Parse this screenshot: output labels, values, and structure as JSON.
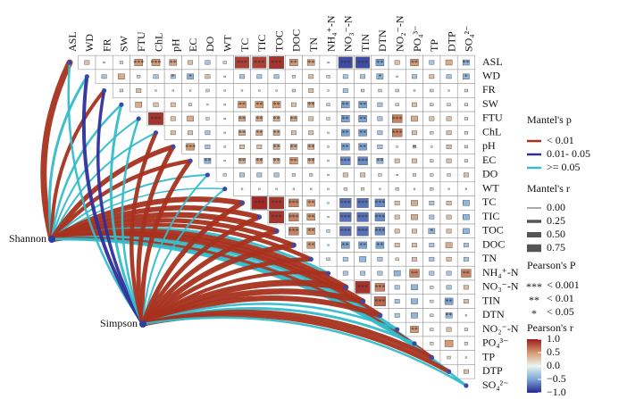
{
  "chart_data": {
    "type": "heatmap",
    "variables": [
      "ASL",
      "WD",
      "FR",
      "SW",
      "FTU",
      "ChL",
      "pH",
      "EC",
      "DO",
      "WT",
      "TC",
      "TIC",
      "TOC",
      "DOC",
      "TN",
      "NH₄⁺-N",
      "NO₃⁻-N",
      "TIN",
      "DTN",
      "NO₂⁻-N",
      "PO₄³⁻",
      "TP",
      "DTP",
      "SO₄²⁻"
    ],
    "matrix": {
      "values": [
        [
          0.3,
          0.1,
          0.2,
          0.5,
          0.5,
          0.45,
          0.3,
          -0.3,
          0.2,
          0.85,
          0.85,
          0.9,
          0.5,
          0.45,
          -0.1,
          -0.85,
          -0.85,
          -0.5,
          0.3,
          0.5,
          -0.3,
          0.4,
          -0.4
        ],
        [
          -0.3,
          0.4,
          -0.2,
          -0.3,
          -0.3,
          -0.4,
          0.3,
          0.1,
          -0.3,
          -0.3,
          -0.3,
          0.2,
          0.3,
          -0.2,
          -0.3,
          -0.3,
          -0.4,
          0.1,
          -0.3,
          0.3,
          -0.3,
          -0.4
        ],
        [
          0.2,
          0.3,
          0.1,
          0.1,
          0.1,
          0.2,
          0.1,
          0.1,
          0.1,
          0.1,
          0.2,
          0.3,
          0.1,
          -0.3,
          -0.2,
          -0.2,
          0.2,
          0.1,
          0.2,
          0.1,
          0.2
        ],
        [
          0.4,
          0.3,
          0.3,
          0.2,
          -0.1,
          0.1,
          0.5,
          0.5,
          0.5,
          0.3,
          0.4,
          -0.2,
          -0.5,
          -0.5,
          -0.3,
          0.2,
          0.3,
          -0.2,
          0.2,
          -0.2
        ],
        [
          0.9,
          0.3,
          0.4,
          -0.2,
          0.1,
          0.4,
          0.4,
          0.4,
          0.4,
          0.3,
          0.2,
          -0.5,
          -0.5,
          -0.3,
          0.6,
          0.4,
          0.3,
          0.3,
          -0.2
        ],
        [
          0.3,
          0.3,
          -0.3,
          0.1,
          0.4,
          0.4,
          0.4,
          0.3,
          0.3,
          0.1,
          -0.5,
          -0.5,
          -0.3,
          0.6,
          0.3,
          0.2,
          0.3,
          -0.2
        ],
        [
          0.5,
          -0.3,
          0.1,
          0.3,
          0.3,
          0.4,
          0.4,
          0.4,
          0.1,
          -0.5,
          -0.5,
          -0.3,
          0.1,
          0.2,
          -0.1,
          0.3,
          -0.2
        ],
        [
          -0.4,
          0.1,
          0.4,
          0.4,
          0.4,
          0.5,
          0.4,
          0.1,
          -0.6,
          -0.6,
          -0.4,
          0.3,
          0.3,
          -0.2,
          0.3,
          -0.2
        ],
        [
          0.2,
          -0.3,
          -0.3,
          -0.3,
          -0.2,
          -0.2,
          0.1,
          0.3,
          0.3,
          0.2,
          -0.1,
          0.2,
          0.2,
          0.2,
          0.3
        ],
        [
          0.1,
          0.1,
          0.1,
          -0.1,
          0.1,
          -0.1,
          0.2,
          0.2,
          0.1,
          0.2,
          0.1,
          0.2,
          0.1,
          0.1
        ],
        [
          0.95,
          0.9,
          0.6,
          0.5,
          -0.1,
          -0.7,
          -0.7,
          -0.6,
          0.3,
          0.4,
          -0.3,
          0.3,
          -0.4
        ],
        [
          0.9,
          0.6,
          0.5,
          -0.1,
          -0.7,
          -0.7,
          -0.6,
          0.3,
          0.4,
          -0.3,
          0.3,
          -0.4
        ],
        [
          0.6,
          0.5,
          -0.2,
          -0.7,
          -0.7,
          -0.6,
          0.3,
          0.3,
          -0.4,
          0.3,
          -0.4
        ],
        [
          0.5,
          -0.1,
          -0.5,
          -0.5,
          -0.5,
          0.3,
          0.3,
          -0.3,
          0.4,
          -0.3
        ],
        [
          -0.2,
          -0.3,
          -0.4,
          -0.3,
          0.2,
          0.3,
          -0.3,
          0.3,
          -0.3
        ],
        [
          -0.3,
          -0.3,
          -0.3,
          -0.4,
          0.6,
          -0.3,
          -0.3,
          0.6
        ],
        [
          0.9,
          0.6,
          -0.3,
          -0.4,
          0.2,
          -0.3,
          0.3
        ],
        [
          0.7,
          -0.3,
          -0.4,
          0.2,
          -0.5,
          0.3
        ],
        [
          -0.3,
          -0.4,
          0.2,
          -0.4,
          0.1
        ],
        [
          0.5,
          0.2,
          0.3,
          0.2
        ],
        [
          0.2,
          0.5,
          0.2
        ],
        [
          0.2,
          0.1
        ],
        [
          0.3
        ]
      ],
      "stars": [
        [
          null,
          null,
          null,
          0,
          0,
          1,
          null,
          null,
          null,
          0,
          0,
          0,
          1,
          1,
          null,
          0,
          0,
          1,
          null,
          1,
          null,
          null,
          1
        ],
        [
          null,
          null,
          null,
          null,
          2,
          2,
          null,
          null,
          null,
          null,
          null,
          null,
          null,
          null,
          null,
          null,
          2,
          null,
          null,
          null,
          null,
          2
        ],
        [
          null,
          null,
          null,
          null,
          null,
          null,
          null,
          null,
          null,
          null,
          null,
          null,
          null,
          null,
          null,
          null,
          null,
          null,
          null,
          null,
          null
        ],
        [
          null,
          null,
          null,
          null,
          null,
          null,
          1,
          1,
          1,
          null,
          1,
          null,
          1,
          1,
          null,
          null,
          null,
          null,
          null,
          null
        ],
        [
          0,
          null,
          null,
          null,
          null,
          1,
          1,
          1,
          1,
          null,
          null,
          1,
          1,
          null,
          0,
          null,
          null,
          null,
          null
        ],
        [
          null,
          null,
          null,
          null,
          1,
          1,
          1,
          null,
          null,
          null,
          1,
          1,
          null,
          0,
          null,
          null,
          null,
          null
        ],
        [
          0,
          null,
          null,
          null,
          null,
          1,
          1,
          1,
          null,
          1,
          1,
          null,
          null,
          2,
          null,
          null,
          null
        ],
        [
          1,
          null,
          1,
          1,
          1,
          1,
          1,
          null,
          0,
          0,
          1,
          null,
          null,
          null,
          null,
          null
        ],
        [
          null,
          null,
          null,
          null,
          null,
          null,
          null,
          null,
          null,
          null,
          null,
          null,
          null,
          null,
          null
        ],
        [
          null,
          null,
          null,
          null,
          null,
          null,
          null,
          null,
          null,
          null,
          null,
          null,
          null,
          null
        ],
        [
          0,
          0,
          0,
          1,
          null,
          0,
          0,
          0,
          null,
          null,
          null,
          null,
          null
        ],
        [
          0,
          0,
          1,
          null,
          0,
          0,
          0,
          null,
          null,
          null,
          null,
          null
        ],
        [
          0,
          1,
          null,
          0,
          0,
          0,
          null,
          null,
          2,
          null,
          null
        ],
        [
          1,
          null,
          1,
          1,
          1,
          null,
          null,
          null,
          null,
          null
        ],
        [
          null,
          null,
          null,
          null,
          null,
          null,
          null,
          null,
          null
        ],
        [
          null,
          null,
          null,
          null,
          1,
          null,
          null,
          1
        ],
        [
          0,
          0,
          null,
          null,
          null,
          null,
          null
        ],
        [
          0,
          null,
          null,
          null,
          1,
          null
        ],
        [
          null,
          null,
          null,
          1,
          null
        ],
        [
          1,
          null,
          null,
          null
        ],
        [
          null,
          null,
          null
        ],
        [
          null,
          null
        ],
        [
          null
        ]
      ]
    },
    "mantel": [
      {
        "name": "Shannon",
        "r": [
          0.6,
          0.2,
          0.3,
          0.15,
          0.1,
          0.1,
          0.45,
          0.35,
          0.1,
          0.05,
          0.5,
          0.45,
          0.5,
          0.4,
          0.35,
          0.2,
          0.55,
          0.5,
          0.45,
          0.2,
          0.15,
          0.3,
          0.2,
          0.15
        ],
        "p_class": [
          0,
          2,
          0,
          2,
          2,
          2,
          0,
          0,
          2,
          2,
          0,
          0,
          0,
          0,
          0,
          2,
          0,
          0,
          0,
          2,
          2,
          0,
          2,
          2
        ]
      },
      {
        "name": "Simpson",
        "r": [
          0.15,
          0.3,
          0.25,
          0.2,
          0.15,
          0.35,
          0.4,
          0.4,
          0.1,
          0.1,
          0.45,
          0.4,
          0.45,
          0.5,
          0.4,
          0.3,
          0.6,
          0.55,
          0.5,
          0.15,
          0.2,
          0.45,
          0.4,
          0.15
        ],
        "p_class": [
          2,
          1,
          1,
          2,
          2,
          0,
          0,
          0,
          2,
          2,
          0,
          0,
          0,
          0,
          0,
          0,
          0,
          0,
          0,
          2,
          2,
          0,
          0,
          2
        ]
      }
    ],
    "mantel_p": {
      "title": "Mantel's p",
      "items": [
        {
          "label": "< 0.01",
          "color": "#a8321f"
        },
        {
          "label": "0.01- 0.05",
          "color": "#2f2f9a"
        },
        {
          "label": ">= 0.05",
          "color": "#33bccb"
        }
      ]
    },
    "mantel_r": {
      "title": "Mantel's r",
      "ticks": [
        {
          "value": 0,
          "label": "0.00"
        },
        {
          "value": 0.25,
          "label": "0.25"
        },
        {
          "value": 0.5,
          "label": "0.50"
        },
        {
          "value": 0.75,
          "label": "0.75"
        }
      ]
    },
    "pearson_p": {
      "title": "Pearson's P",
      "items": [
        {
          "symbol": "***",
          "label": "< 0.001"
        },
        {
          "symbol": "**",
          "label": "< 0.01"
        },
        {
          "symbol": "*",
          "label": "< 0.05"
        }
      ]
    },
    "pearson_r": {
      "title": "Pearson's r",
      "zlim": [
        -1,
        1
      ],
      "colors": [
        "#25268e",
        "#7aa6d6",
        "#eaf4f0",
        "#d49a72",
        "#9c1b1b"
      ],
      "ticks": [
        {
          "value": 1,
          "label": "1.0"
        },
        {
          "value": 0.5,
          "label": "0.5"
        },
        {
          "value": 0,
          "label": "0.0"
        },
        {
          "value": -0.5,
          "label": "−0.5"
        },
        {
          "value": -1,
          "label": "−1.0"
        }
      ]
    }
  }
}
